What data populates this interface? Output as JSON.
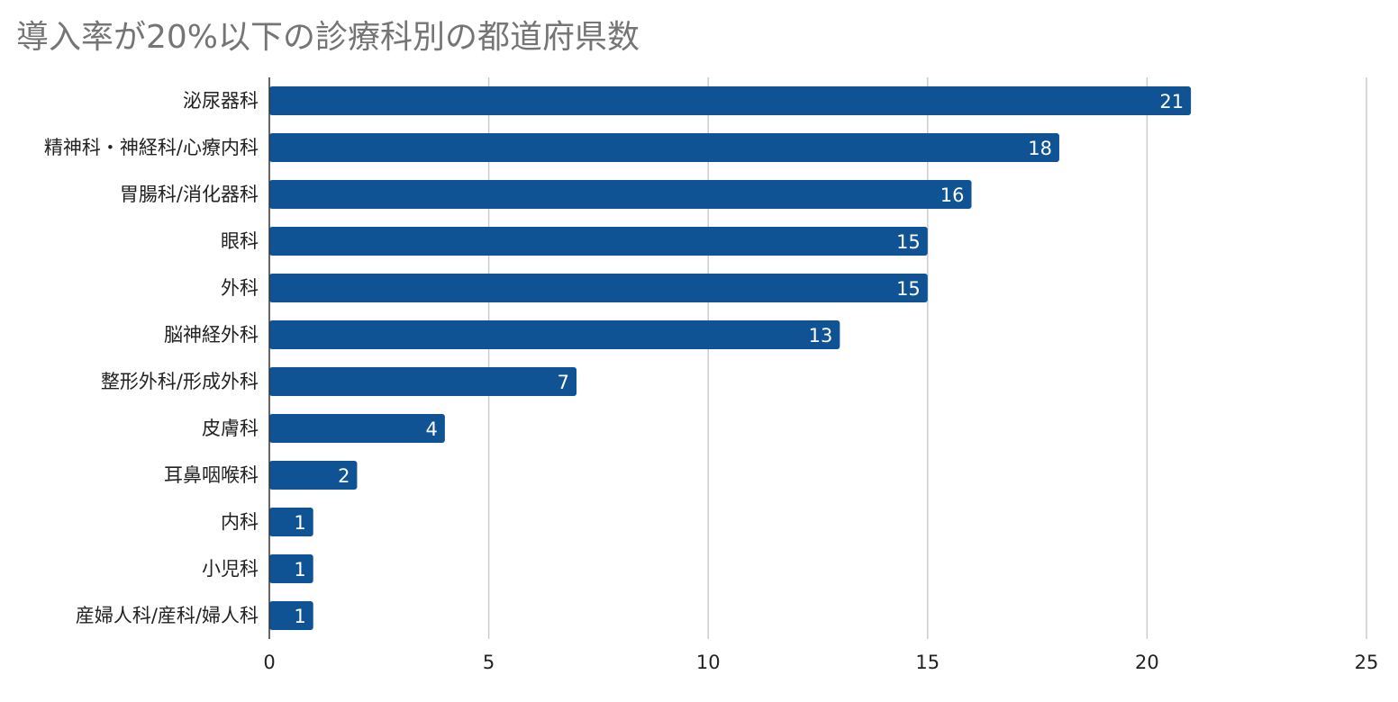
{
  "chart_data": {
    "type": "bar",
    "orientation": "horizontal",
    "title": "導入率が20%以下の診療科別の都道府県数",
    "xlabel": "",
    "ylabel": "",
    "categories": [
      "泌尿器科",
      "精神科・神経科/心療内科",
      "胃腸科/消化器科",
      "眼科",
      "外科",
      "脳神経外科",
      "整形外科/形成外科",
      "皮膚科",
      "耳鼻咽喉科",
      "内科",
      "小児科",
      "産婦人科/産科/婦人科"
    ],
    "values": [
      21,
      18,
      16,
      15,
      15,
      13,
      7,
      4,
      2,
      1,
      1,
      1
    ],
    "xlim": [
      0,
      25
    ],
    "xticks": [
      0,
      5,
      10,
      15,
      20,
      25
    ],
    "grid": true,
    "data_labels": true,
    "legend": "none",
    "bar_color": "#0f5394"
  }
}
